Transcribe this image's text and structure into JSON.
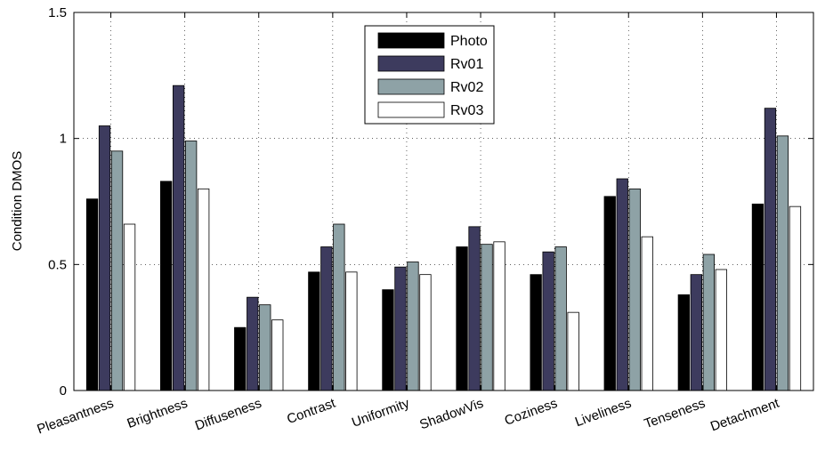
{
  "chart_data": {
    "type": "bar",
    "title": "",
    "xlabel": "",
    "ylabel": "Condition DMOS",
    "ylim": [
      0,
      1.5
    ],
    "yticks": [
      0,
      0.5,
      1,
      1.5
    ],
    "ytick_labels": [
      "0",
      "0.5",
      "1",
      "1.5"
    ],
    "grid": true,
    "legend_position": "top-center",
    "categories": [
      "Pleasantness",
      "Brightness",
      "Diffuseness",
      "Contrast",
      "Uniformity",
      "ShadowVis",
      "Coziness",
      "Liveliness",
      "Tenseness",
      "Detachment"
    ],
    "series": [
      {
        "name": "Photo",
        "color": "#000000",
        "values": [
          0.76,
          0.83,
          0.25,
          0.47,
          0.4,
          0.57,
          0.46,
          0.77,
          0.38,
          0.74
        ]
      },
      {
        "name": "Rv01",
        "color": "#3d3b5e",
        "values": [
          1.05,
          1.21,
          0.37,
          0.57,
          0.49,
          0.65,
          0.55,
          0.84,
          0.46,
          1.12
        ]
      },
      {
        "name": "Rv02",
        "color": "#8ea2a6",
        "values": [
          0.95,
          0.99,
          0.34,
          0.66,
          0.51,
          0.58,
          0.57,
          0.8,
          0.54,
          1.01
        ]
      },
      {
        "name": "Rv03",
        "color": "#ffffff",
        "values": [
          0.66,
          0.8,
          0.28,
          0.47,
          0.46,
          0.59,
          0.31,
          0.61,
          0.48,
          0.73
        ]
      }
    ]
  }
}
